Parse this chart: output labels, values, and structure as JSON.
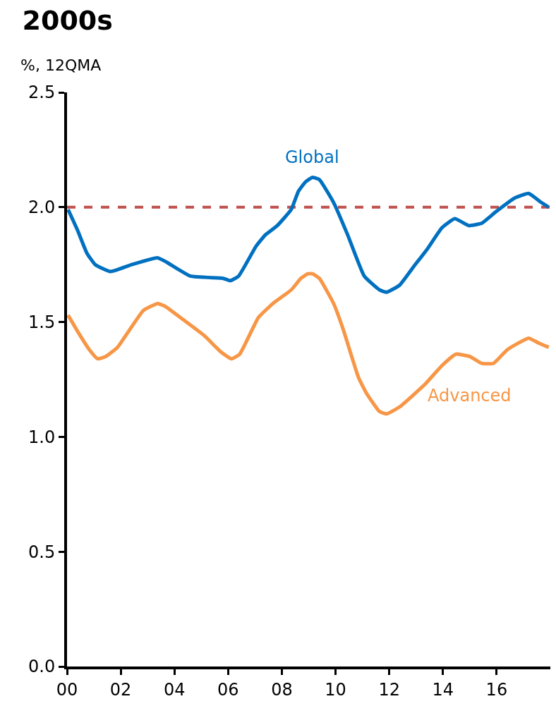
{
  "chart_data": {
    "type": "line",
    "title": "2000s",
    "ylabel": "%, 12QMA",
    "xlim": [
      0,
      18
    ],
    "xticks": [
      {
        "value": 0,
        "label": "00"
      },
      {
        "value": 2,
        "label": "02"
      },
      {
        "value": 4,
        "label": "04"
      },
      {
        "value": 6,
        "label": "06"
      },
      {
        "value": 8,
        "label": "08"
      },
      {
        "value": 10,
        "label": "10"
      },
      {
        "value": 12,
        "label": "12"
      },
      {
        "value": 14,
        "label": "14"
      },
      {
        "value": 16,
        "label": "16"
      }
    ],
    "ylim": [
      0,
      2.5
    ],
    "yticks": [
      {
        "value": 0,
        "label": "0.0"
      },
      {
        "value": 0.5,
        "label": "0.5"
      },
      {
        "value": 1,
        "label": "1.0"
      },
      {
        "value": 1.5,
        "label": "1.5"
      },
      {
        "value": 2,
        "label": "2.0"
      },
      {
        "value": 2.5,
        "label": "2.5"
      }
    ],
    "grid": false,
    "legend": false,
    "marker": "none",
    "line_style": "solid",
    "series": [
      {
        "name": "Global",
        "color": "#0070c0",
        "x": [
          0.04,
          0.39,
          0.74,
          1.05,
          1.62,
          2.41,
          3.37,
          3.72,
          4.59,
          5.82,
          6.08,
          6.39,
          7.04,
          7.39,
          7.83,
          8.35,
          8.62,
          8.88,
          9.14,
          9.4,
          9.93,
          10.45,
          11.07,
          11.64,
          11.9,
          12.38,
          12.9,
          13.43,
          13.96,
          14.44,
          14.96,
          15.44,
          15.97,
          16.67,
          17.19,
          17.67,
          17.94
        ],
        "values": [
          1.99,
          1.9,
          1.8,
          1.75,
          1.72,
          1.75,
          1.78,
          1.76,
          1.7,
          1.69,
          1.68,
          1.7,
          1.83,
          1.88,
          1.92,
          1.99,
          2.07,
          2.11,
          2.13,
          2.12,
          2.02,
          1.88,
          1.7,
          1.64,
          1.63,
          1.66,
          1.74,
          1.82,
          1.91,
          1.95,
          1.92,
          1.93,
          1.98,
          2.04,
          2.06,
          2.02,
          2.0
        ]
      },
      {
        "name": "Advanced",
        "color": "#f79646",
        "x": [
          0.04,
          0.39,
          0.83,
          1.14,
          1.44,
          1.88,
          2.84,
          3.37,
          3.63,
          4.33,
          5.12,
          5.73,
          6.12,
          6.43,
          7.13,
          7.66,
          8.35,
          8.71,
          8.97,
          9.14,
          9.4,
          9.93,
          10.28,
          10.85,
          11.15,
          11.64,
          11.9,
          12.38,
          13.34,
          13.96,
          14.48,
          15.0,
          15.44,
          15.88,
          16.4,
          17.19,
          17.54,
          17.94
        ],
        "values": [
          1.53,
          1.46,
          1.38,
          1.34,
          1.35,
          1.39,
          1.55,
          1.58,
          1.57,
          1.51,
          1.44,
          1.37,
          1.34,
          1.36,
          1.52,
          1.58,
          1.64,
          1.69,
          1.71,
          1.71,
          1.69,
          1.58,
          1.47,
          1.26,
          1.19,
          1.11,
          1.1,
          1.13,
          1.23,
          1.31,
          1.36,
          1.35,
          1.32,
          1.32,
          1.38,
          1.43,
          1.41,
          1.39
        ]
      }
    ],
    "ref_lines": [
      {
        "axis": "y",
        "value": 2.0,
        "color": "#c0504d",
        "line_style": "dashed"
      }
    ]
  }
}
